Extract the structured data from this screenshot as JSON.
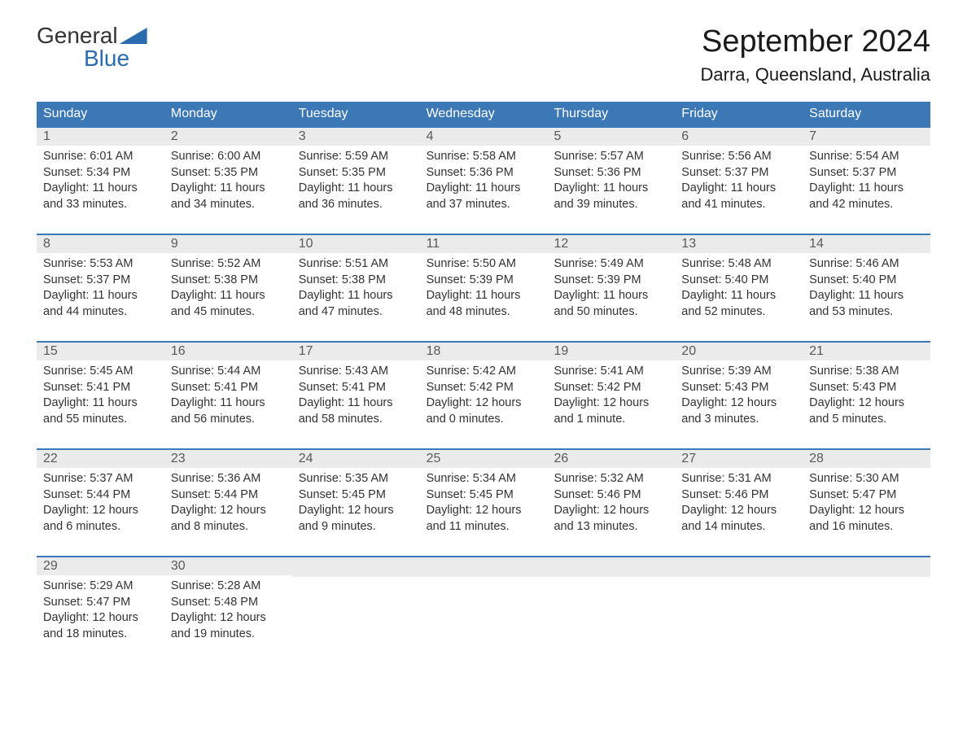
{
  "logo": {
    "line1": "General",
    "line2": "Blue"
  },
  "title": "September 2024",
  "location": "Darra, Queensland, Australia",
  "colors": {
    "header_bg": "#3b78b5",
    "header_text": "#ffffff",
    "daynum_bg": "#ebebeb",
    "daynum_text": "#595959",
    "body_text": "#333333",
    "accent": "#2b6cb0",
    "page_bg": "#ffffff"
  },
  "typography": {
    "title_fontsize": 38,
    "location_fontsize": 22,
    "dayheader_fontsize": 16,
    "daynum_fontsize": 16,
    "content_fontsize": 14.5
  },
  "day_headers": [
    "Sunday",
    "Monday",
    "Tuesday",
    "Wednesday",
    "Thursday",
    "Friday",
    "Saturday"
  ],
  "weeks": [
    [
      {
        "n": "1",
        "sunrise": "Sunrise: 6:01 AM",
        "sunset": "Sunset: 5:34 PM",
        "daylight1": "Daylight: 11 hours",
        "daylight2": "and 33 minutes."
      },
      {
        "n": "2",
        "sunrise": "Sunrise: 6:00 AM",
        "sunset": "Sunset: 5:35 PM",
        "daylight1": "Daylight: 11 hours",
        "daylight2": "and 34 minutes."
      },
      {
        "n": "3",
        "sunrise": "Sunrise: 5:59 AM",
        "sunset": "Sunset: 5:35 PM",
        "daylight1": "Daylight: 11 hours",
        "daylight2": "and 36 minutes."
      },
      {
        "n": "4",
        "sunrise": "Sunrise: 5:58 AM",
        "sunset": "Sunset: 5:36 PM",
        "daylight1": "Daylight: 11 hours",
        "daylight2": "and 37 minutes."
      },
      {
        "n": "5",
        "sunrise": "Sunrise: 5:57 AM",
        "sunset": "Sunset: 5:36 PM",
        "daylight1": "Daylight: 11 hours",
        "daylight2": "and 39 minutes."
      },
      {
        "n": "6",
        "sunrise": "Sunrise: 5:56 AM",
        "sunset": "Sunset: 5:37 PM",
        "daylight1": "Daylight: 11 hours",
        "daylight2": "and 41 minutes."
      },
      {
        "n": "7",
        "sunrise": "Sunrise: 5:54 AM",
        "sunset": "Sunset: 5:37 PM",
        "daylight1": "Daylight: 11 hours",
        "daylight2": "and 42 minutes."
      }
    ],
    [
      {
        "n": "8",
        "sunrise": "Sunrise: 5:53 AM",
        "sunset": "Sunset: 5:37 PM",
        "daylight1": "Daylight: 11 hours",
        "daylight2": "and 44 minutes."
      },
      {
        "n": "9",
        "sunrise": "Sunrise: 5:52 AM",
        "sunset": "Sunset: 5:38 PM",
        "daylight1": "Daylight: 11 hours",
        "daylight2": "and 45 minutes."
      },
      {
        "n": "10",
        "sunrise": "Sunrise: 5:51 AM",
        "sunset": "Sunset: 5:38 PM",
        "daylight1": "Daylight: 11 hours",
        "daylight2": "and 47 minutes."
      },
      {
        "n": "11",
        "sunrise": "Sunrise: 5:50 AM",
        "sunset": "Sunset: 5:39 PM",
        "daylight1": "Daylight: 11 hours",
        "daylight2": "and 48 minutes."
      },
      {
        "n": "12",
        "sunrise": "Sunrise: 5:49 AM",
        "sunset": "Sunset: 5:39 PM",
        "daylight1": "Daylight: 11 hours",
        "daylight2": "and 50 minutes."
      },
      {
        "n": "13",
        "sunrise": "Sunrise: 5:48 AM",
        "sunset": "Sunset: 5:40 PM",
        "daylight1": "Daylight: 11 hours",
        "daylight2": "and 52 minutes."
      },
      {
        "n": "14",
        "sunrise": "Sunrise: 5:46 AM",
        "sunset": "Sunset: 5:40 PM",
        "daylight1": "Daylight: 11 hours",
        "daylight2": "and 53 minutes."
      }
    ],
    [
      {
        "n": "15",
        "sunrise": "Sunrise: 5:45 AM",
        "sunset": "Sunset: 5:41 PM",
        "daylight1": "Daylight: 11 hours",
        "daylight2": "and 55 minutes."
      },
      {
        "n": "16",
        "sunrise": "Sunrise: 5:44 AM",
        "sunset": "Sunset: 5:41 PM",
        "daylight1": "Daylight: 11 hours",
        "daylight2": "and 56 minutes."
      },
      {
        "n": "17",
        "sunrise": "Sunrise: 5:43 AM",
        "sunset": "Sunset: 5:41 PM",
        "daylight1": "Daylight: 11 hours",
        "daylight2": "and 58 minutes."
      },
      {
        "n": "18",
        "sunrise": "Sunrise: 5:42 AM",
        "sunset": "Sunset: 5:42 PM",
        "daylight1": "Daylight: 12 hours",
        "daylight2": "and 0 minutes."
      },
      {
        "n": "19",
        "sunrise": "Sunrise: 5:41 AM",
        "sunset": "Sunset: 5:42 PM",
        "daylight1": "Daylight: 12 hours",
        "daylight2": "and 1 minute."
      },
      {
        "n": "20",
        "sunrise": "Sunrise: 5:39 AM",
        "sunset": "Sunset: 5:43 PM",
        "daylight1": "Daylight: 12 hours",
        "daylight2": "and 3 minutes."
      },
      {
        "n": "21",
        "sunrise": "Sunrise: 5:38 AM",
        "sunset": "Sunset: 5:43 PM",
        "daylight1": "Daylight: 12 hours",
        "daylight2": "and 5 minutes."
      }
    ],
    [
      {
        "n": "22",
        "sunrise": "Sunrise: 5:37 AM",
        "sunset": "Sunset: 5:44 PM",
        "daylight1": "Daylight: 12 hours",
        "daylight2": "and 6 minutes."
      },
      {
        "n": "23",
        "sunrise": "Sunrise: 5:36 AM",
        "sunset": "Sunset: 5:44 PM",
        "daylight1": "Daylight: 12 hours",
        "daylight2": "and 8 minutes."
      },
      {
        "n": "24",
        "sunrise": "Sunrise: 5:35 AM",
        "sunset": "Sunset: 5:45 PM",
        "daylight1": "Daylight: 12 hours",
        "daylight2": "and 9 minutes."
      },
      {
        "n": "25",
        "sunrise": "Sunrise: 5:34 AM",
        "sunset": "Sunset: 5:45 PM",
        "daylight1": "Daylight: 12 hours",
        "daylight2": "and 11 minutes."
      },
      {
        "n": "26",
        "sunrise": "Sunrise: 5:32 AM",
        "sunset": "Sunset: 5:46 PM",
        "daylight1": "Daylight: 12 hours",
        "daylight2": "and 13 minutes."
      },
      {
        "n": "27",
        "sunrise": "Sunrise: 5:31 AM",
        "sunset": "Sunset: 5:46 PM",
        "daylight1": "Daylight: 12 hours",
        "daylight2": "and 14 minutes."
      },
      {
        "n": "28",
        "sunrise": "Sunrise: 5:30 AM",
        "sunset": "Sunset: 5:47 PM",
        "daylight1": "Daylight: 12 hours",
        "daylight2": "and 16 minutes."
      }
    ],
    [
      {
        "n": "29",
        "sunrise": "Sunrise: 5:29 AM",
        "sunset": "Sunset: 5:47 PM",
        "daylight1": "Daylight: 12 hours",
        "daylight2": "and 18 minutes."
      },
      {
        "n": "30",
        "sunrise": "Sunrise: 5:28 AM",
        "sunset": "Sunset: 5:48 PM",
        "daylight1": "Daylight: 12 hours",
        "daylight2": "and 19 minutes."
      },
      {
        "empty": true
      },
      {
        "empty": true
      },
      {
        "empty": true
      },
      {
        "empty": true
      },
      {
        "empty": true
      }
    ]
  ]
}
